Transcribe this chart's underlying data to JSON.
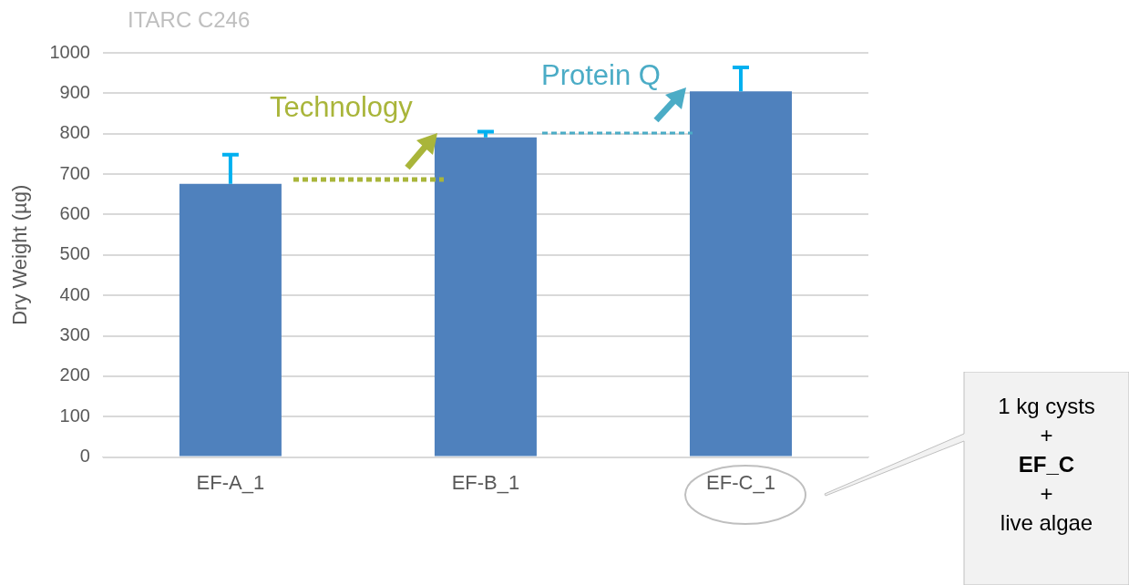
{
  "chart_data": {
    "type": "bar",
    "title": "ITARC C246",
    "ylabel": "Dry Weight (µg)",
    "categories": [
      "EF-A_1",
      "EF-B_1",
      "EF-C_1"
    ],
    "series": [
      {
        "color": "#4f81bd",
        "values": [
          676,
          791,
          905
        ],
        "errors": [
          [
            676,
            748
          ],
          [
            791,
            805
          ],
          [
            905,
            964
          ]
        ]
      }
    ],
    "ylim": [
      0,
      1000
    ],
    "yticks": [
      0,
      100,
      200,
      300,
      400,
      500,
      600,
      700,
      800,
      900,
      1000
    ],
    "grid": "y",
    "legend": false,
    "annotations": [
      "Technology",
      "Protein Q",
      "1 kg cysts\n+\nEF_C\n+\nlive algae"
    ]
  }
}
